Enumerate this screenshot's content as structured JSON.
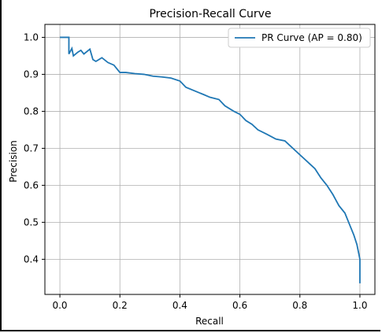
{
  "chart_data": {
    "type": "line",
    "title": "Precision-Recall Curve",
    "xlabel": "Recall",
    "ylabel": "Precision",
    "xlim": [
      -0.05,
      1.05
    ],
    "ylim": [
      0.305,
      1.035
    ],
    "grid": true,
    "legend_position": "top-right",
    "x_ticks": [
      0.0,
      0.2,
      0.4,
      0.6,
      0.8,
      1.0
    ],
    "x_tick_labels": [
      "0.0",
      "0.2",
      "0.4",
      "0.6",
      "0.8",
      "1.0"
    ],
    "y_ticks": [
      0.4,
      0.5,
      0.6,
      0.7,
      0.8,
      0.9,
      1.0
    ],
    "y_tick_labels": [
      "0.4",
      "0.5",
      "0.6",
      "0.7",
      "0.8",
      "0.9",
      "1.0"
    ],
    "series": [
      {
        "name": "PR Curve (AP = 0.80)",
        "color": "#1f77b4",
        "points": [
          [
            0.0,
            1.0
          ],
          [
            0.03,
            1.0
          ],
          [
            0.03,
            0.955
          ],
          [
            0.04,
            0.97
          ],
          [
            0.045,
            0.95
          ],
          [
            0.06,
            0.96
          ],
          [
            0.07,
            0.965
          ],
          [
            0.08,
            0.955
          ],
          [
            0.1,
            0.968
          ],
          [
            0.11,
            0.94
          ],
          [
            0.12,
            0.935
          ],
          [
            0.14,
            0.945
          ],
          [
            0.16,
            0.932
          ],
          [
            0.18,
            0.925
          ],
          [
            0.2,
            0.905
          ],
          [
            0.22,
            0.905
          ],
          [
            0.25,
            0.902
          ],
          [
            0.28,
            0.9
          ],
          [
            0.31,
            0.895
          ],
          [
            0.34,
            0.893
          ],
          [
            0.37,
            0.89
          ],
          [
            0.4,
            0.882
          ],
          [
            0.42,
            0.865
          ],
          [
            0.45,
            0.855
          ],
          [
            0.48,
            0.845
          ],
          [
            0.5,
            0.838
          ],
          [
            0.53,
            0.832
          ],
          [
            0.55,
            0.815
          ],
          [
            0.58,
            0.8
          ],
          [
            0.6,
            0.792
          ],
          [
            0.62,
            0.775
          ],
          [
            0.64,
            0.765
          ],
          [
            0.66,
            0.75
          ],
          [
            0.69,
            0.738
          ],
          [
            0.72,
            0.725
          ],
          [
            0.75,
            0.72
          ],
          [
            0.77,
            0.705
          ],
          [
            0.79,
            0.69
          ],
          [
            0.81,
            0.675
          ],
          [
            0.83,
            0.66
          ],
          [
            0.85,
            0.645
          ],
          [
            0.87,
            0.62
          ],
          [
            0.89,
            0.6
          ],
          [
            0.91,
            0.575
          ],
          [
            0.93,
            0.545
          ],
          [
            0.95,
            0.525
          ],
          [
            0.96,
            0.505
          ],
          [
            0.97,
            0.485
          ],
          [
            0.98,
            0.465
          ],
          [
            0.99,
            0.44
          ],
          [
            0.995,
            0.42
          ],
          [
            1.0,
            0.4
          ],
          [
            1.0,
            0.335
          ]
        ]
      }
    ]
  }
}
